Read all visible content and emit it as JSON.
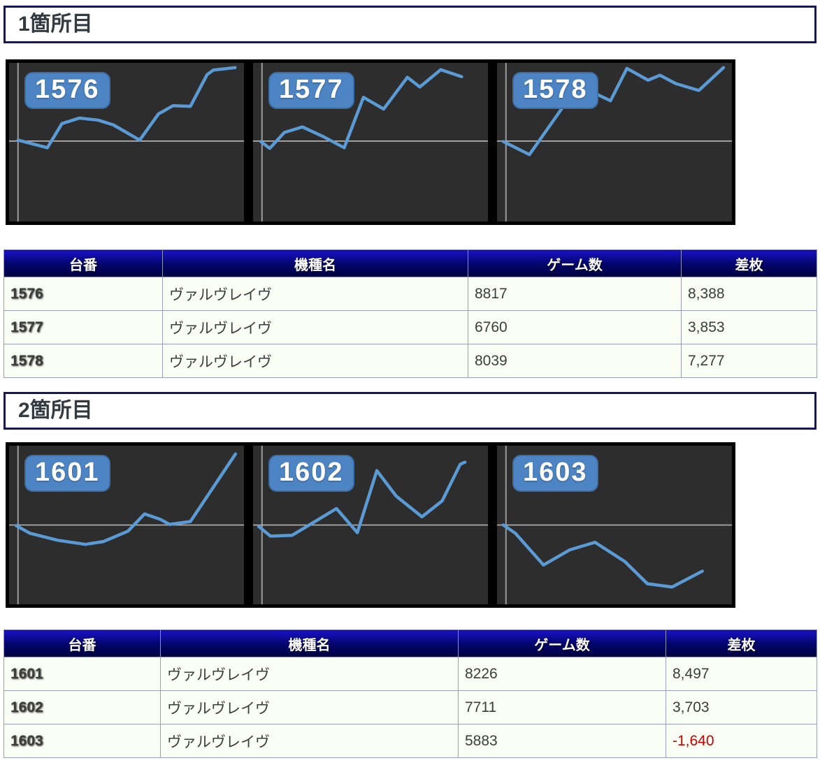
{
  "sections": [
    {
      "title": "1箇所目",
      "zero_y": 49.3,
      "axis_x": 3.8,
      "charts": [
        {
          "machine": "1576",
          "points": [
            [
              3.8,
              48.7
            ],
            [
              16.3,
              53.5
            ],
            [
              22.5,
              38.3
            ],
            [
              29.9,
              34.8
            ],
            [
              37.9,
              36.1
            ],
            [
              44.4,
              39.1
            ],
            [
              55.6,
              48.7
            ],
            [
              63.6,
              32.2
            ],
            [
              69.8,
              27.0
            ],
            [
              77.2,
              27.4
            ],
            [
              84.3,
              7.4
            ],
            [
              87.0,
              4.5
            ],
            [
              96.2,
              3.0
            ]
          ]
        },
        {
          "machine": "1577",
          "points": [
            [
              3.3,
              49.6
            ],
            [
              7.1,
              53.9
            ],
            [
              13.3,
              43.9
            ],
            [
              21.0,
              40.4
            ],
            [
              29.9,
              46.5
            ],
            [
              38.8,
              53.5
            ],
            [
              47.0,
              21.7
            ],
            [
              50.6,
              24.8
            ],
            [
              55.6,
              29.1
            ],
            [
              65.7,
              9.1
            ],
            [
              71.0,
              15.2
            ],
            [
              79.9,
              4.3
            ],
            [
              88.8,
              8.7
            ]
          ]
        },
        {
          "machine": "1578",
          "points": [
            [
              2.7,
              49.6
            ],
            [
              13.8,
              57.8
            ],
            [
              33.0,
              17.4
            ],
            [
              41.0,
              18.7
            ],
            [
              48.3,
              23.9
            ],
            [
              55.3,
              3.5
            ],
            [
              64.3,
              10.9
            ],
            [
              69.4,
              7.8
            ],
            [
              76.0,
              13.0
            ],
            [
              85.9,
              17.4
            ],
            [
              96.4,
              3.0
            ]
          ]
        }
      ],
      "table": {
        "headers": [
          "台番",
          "機種名",
          "ゲーム数",
          "差枚"
        ],
        "rows": [
          {
            "machine": "1576",
            "model": "ヴァルヴレイヴ",
            "games": "8817",
            "diff": "8,388"
          },
          {
            "machine": "1577",
            "model": "ヴァルヴレイヴ",
            "games": "6760",
            "diff": "3,853"
          },
          {
            "machine": "1578",
            "model": "ヴァルヴレイヴ",
            "games": "8039",
            "diff": "7,277"
          }
        ]
      }
    },
    {
      "title": "2箇所目",
      "zero_y": 50.0,
      "axis_x": 3.8,
      "charts": [
        {
          "machine": "1601",
          "points": [
            [
              3.0,
              50.4
            ],
            [
              8.9,
              55.2
            ],
            [
              20.7,
              59.6
            ],
            [
              32.5,
              62.2
            ],
            [
              40.2,
              60.4
            ],
            [
              50.6,
              53.9
            ],
            [
              57.7,
              43.0
            ],
            [
              64.5,
              46.5
            ],
            [
              68.3,
              49.6
            ],
            [
              77.2,
              47.8
            ],
            [
              96.4,
              5.2
            ]
          ]
        },
        {
          "machine": "1602",
          "points": [
            [
              2.4,
              50.9
            ],
            [
              7.4,
              57.0
            ],
            [
              16.6,
              56.5
            ],
            [
              35.5,
              39.6
            ],
            [
              44.4,
              54.8
            ],
            [
              52.7,
              15.7
            ],
            [
              60.9,
              31.7
            ],
            [
              71.9,
              44.8
            ],
            [
              80.5,
              34.8
            ],
            [
              88.2,
              11.7
            ],
            [
              90.2,
              10.4
            ]
          ]
        },
        {
          "machine": "1603",
          "points": [
            [
              2.7,
              50.0
            ],
            [
              7.8,
              55.2
            ],
            [
              19.8,
              75.2
            ],
            [
              30.9,
              65.7
            ],
            [
              41.7,
              60.9
            ],
            [
              54.4,
              73.0
            ],
            [
              64.0,
              87.0
            ],
            [
              74.5,
              89.1
            ],
            [
              87.4,
              79.1
            ]
          ]
        }
      ],
      "table": {
        "headers": [
          "台番",
          "機種名",
          "ゲーム数",
          "差枚"
        ],
        "rows": [
          {
            "machine": "1601",
            "model": "ヴァルヴレイヴ",
            "games": "8226",
            "diff": "8,497"
          },
          {
            "machine": "1602",
            "model": "ヴァルヴレイヴ",
            "games": "7711",
            "diff": "3,703"
          },
          {
            "machine": "1603",
            "model": "ヴァルヴレイヴ",
            "games": "5883",
            "diff": "-1,640"
          }
        ]
      }
    }
  ],
  "colors": {
    "line_blue": "#5b9bd5",
    "badge_blue": "#4d84c4",
    "header_navy_top": "#1612c6",
    "header_navy_bottom": "#000040",
    "negative_red": "#cc0000",
    "chart_bg": "#2d2d2d"
  }
}
